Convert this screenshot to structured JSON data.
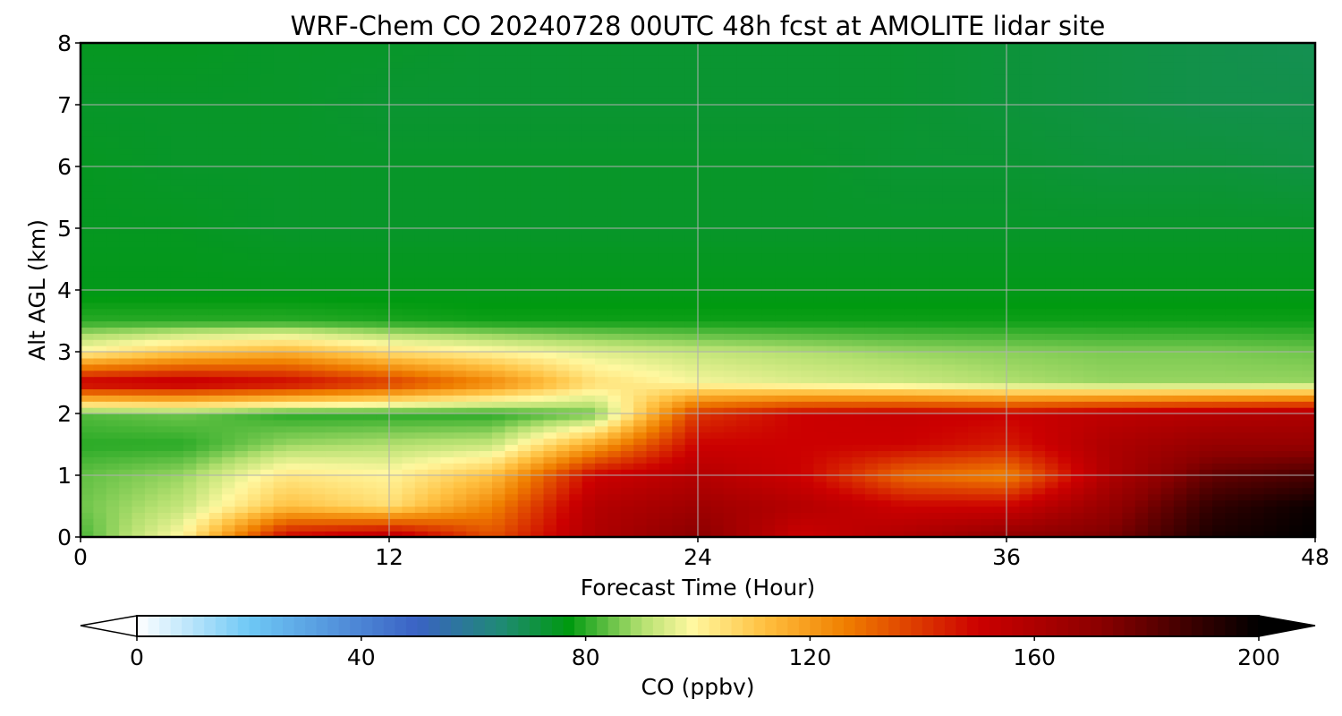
{
  "chart_data": {
    "type": "heatmap",
    "title": "WRF-Chem CO  20240728 00UTC 48h fcst at AMOLITE lidar site",
    "xlabel": "Forecast Time (Hour)",
    "ylabel": "Alt AGL (km)",
    "xlim": [
      0,
      48
    ],
    "ylim": [
      0,
      8
    ],
    "xticks": [
      "0",
      "12",
      "24",
      "36",
      "48"
    ],
    "yticks": [
      "0",
      "1",
      "2",
      "3",
      "4",
      "5",
      "6",
      "7",
      "8"
    ],
    "grid": true,
    "x_hours": [
      0,
      4,
      8,
      12,
      16,
      20,
      24,
      28,
      32,
      36,
      40,
      44,
      48
    ],
    "y_km": [
      0.0,
      0.5,
      1.0,
      1.5,
      2.0,
      2.5,
      3.0,
      3.5,
      4.0,
      5.0,
      6.0,
      7.0,
      8.0
    ],
    "z_ppbv": [
      [
        82,
        100,
        150,
        158,
        135,
        160,
        172,
        150,
        160,
        170,
        175,
        195,
        200
      ],
      [
        85,
        92,
        112,
        105,
        125,
        158,
        165,
        158,
        150,
        150,
        168,
        190,
        198
      ],
      [
        84,
        88,
        103,
        100,
        112,
        150,
        158,
        150,
        130,
        125,
        160,
        180,
        185
      ],
      [
        80,
        80,
        88,
        90,
        92,
        118,
        150,
        150,
        150,
        145,
        160,
        168,
        168
      ],
      [
        83,
        85,
        80,
        80,
        80,
        85,
        140,
        150,
        152,
        150,
        155,
        158,
        160
      ],
      [
        153,
        155,
        150,
        140,
        125,
        105,
        98,
        95,
        93,
        90,
        88,
        88,
        88
      ],
      [
        100,
        110,
        115,
        105,
        100,
        95,
        92,
        90,
        88,
        87,
        86,
        86,
        85
      ],
      [
        80,
        80,
        80,
        79,
        78,
        78,
        78,
        78,
        78,
        78,
        78,
        78,
        78
      ],
      [
        76,
        76,
        76,
        76,
        76,
        76,
        76,
        76,
        76,
        76,
        76,
        76,
        76
      ],
      [
        75,
        75,
        74,
        74,
        74,
        74,
        74,
        74,
        74,
        74,
        74,
        74,
        74
      ],
      [
        75,
        74,
        74,
        74,
        74,
        74,
        74,
        74,
        73,
        73,
        72,
        72,
        71
      ],
      [
        74,
        74,
        74,
        73,
        73,
        73,
        73,
        73,
        73,
        72,
        71,
        70,
        70
      ],
      [
        75,
        75,
        74,
        74,
        73,
        73,
        73,
        73,
        73,
        72,
        71,
        70,
        69
      ]
    ],
    "colorbar": {
      "label": "CO  (ppbv)",
      "ticks": [
        "0",
        "40",
        "80",
        "120",
        "160",
        "200"
      ],
      "min": 0,
      "max": 200,
      "extend": "both",
      "orientation": "horizontal",
      "stops": [
        {
          "value": 0,
          "color": "#ffffff"
        },
        {
          "value": 20,
          "color": "#6ec8f5"
        },
        {
          "value": 50,
          "color": "#3a62c4"
        },
        {
          "value": 65,
          "color": "#1f8a74"
        },
        {
          "value": 77,
          "color": "#009a10"
        },
        {
          "value": 90,
          "color": "#b4e070"
        },
        {
          "value": 99,
          "color": "#fff8a0"
        },
        {
          "value": 112,
          "color": "#ffc040"
        },
        {
          "value": 126,
          "color": "#f08000"
        },
        {
          "value": 150,
          "color": "#cc0000"
        },
        {
          "value": 172,
          "color": "#8a0000"
        },
        {
          "value": 200,
          "color": "#000000"
        }
      ]
    }
  }
}
